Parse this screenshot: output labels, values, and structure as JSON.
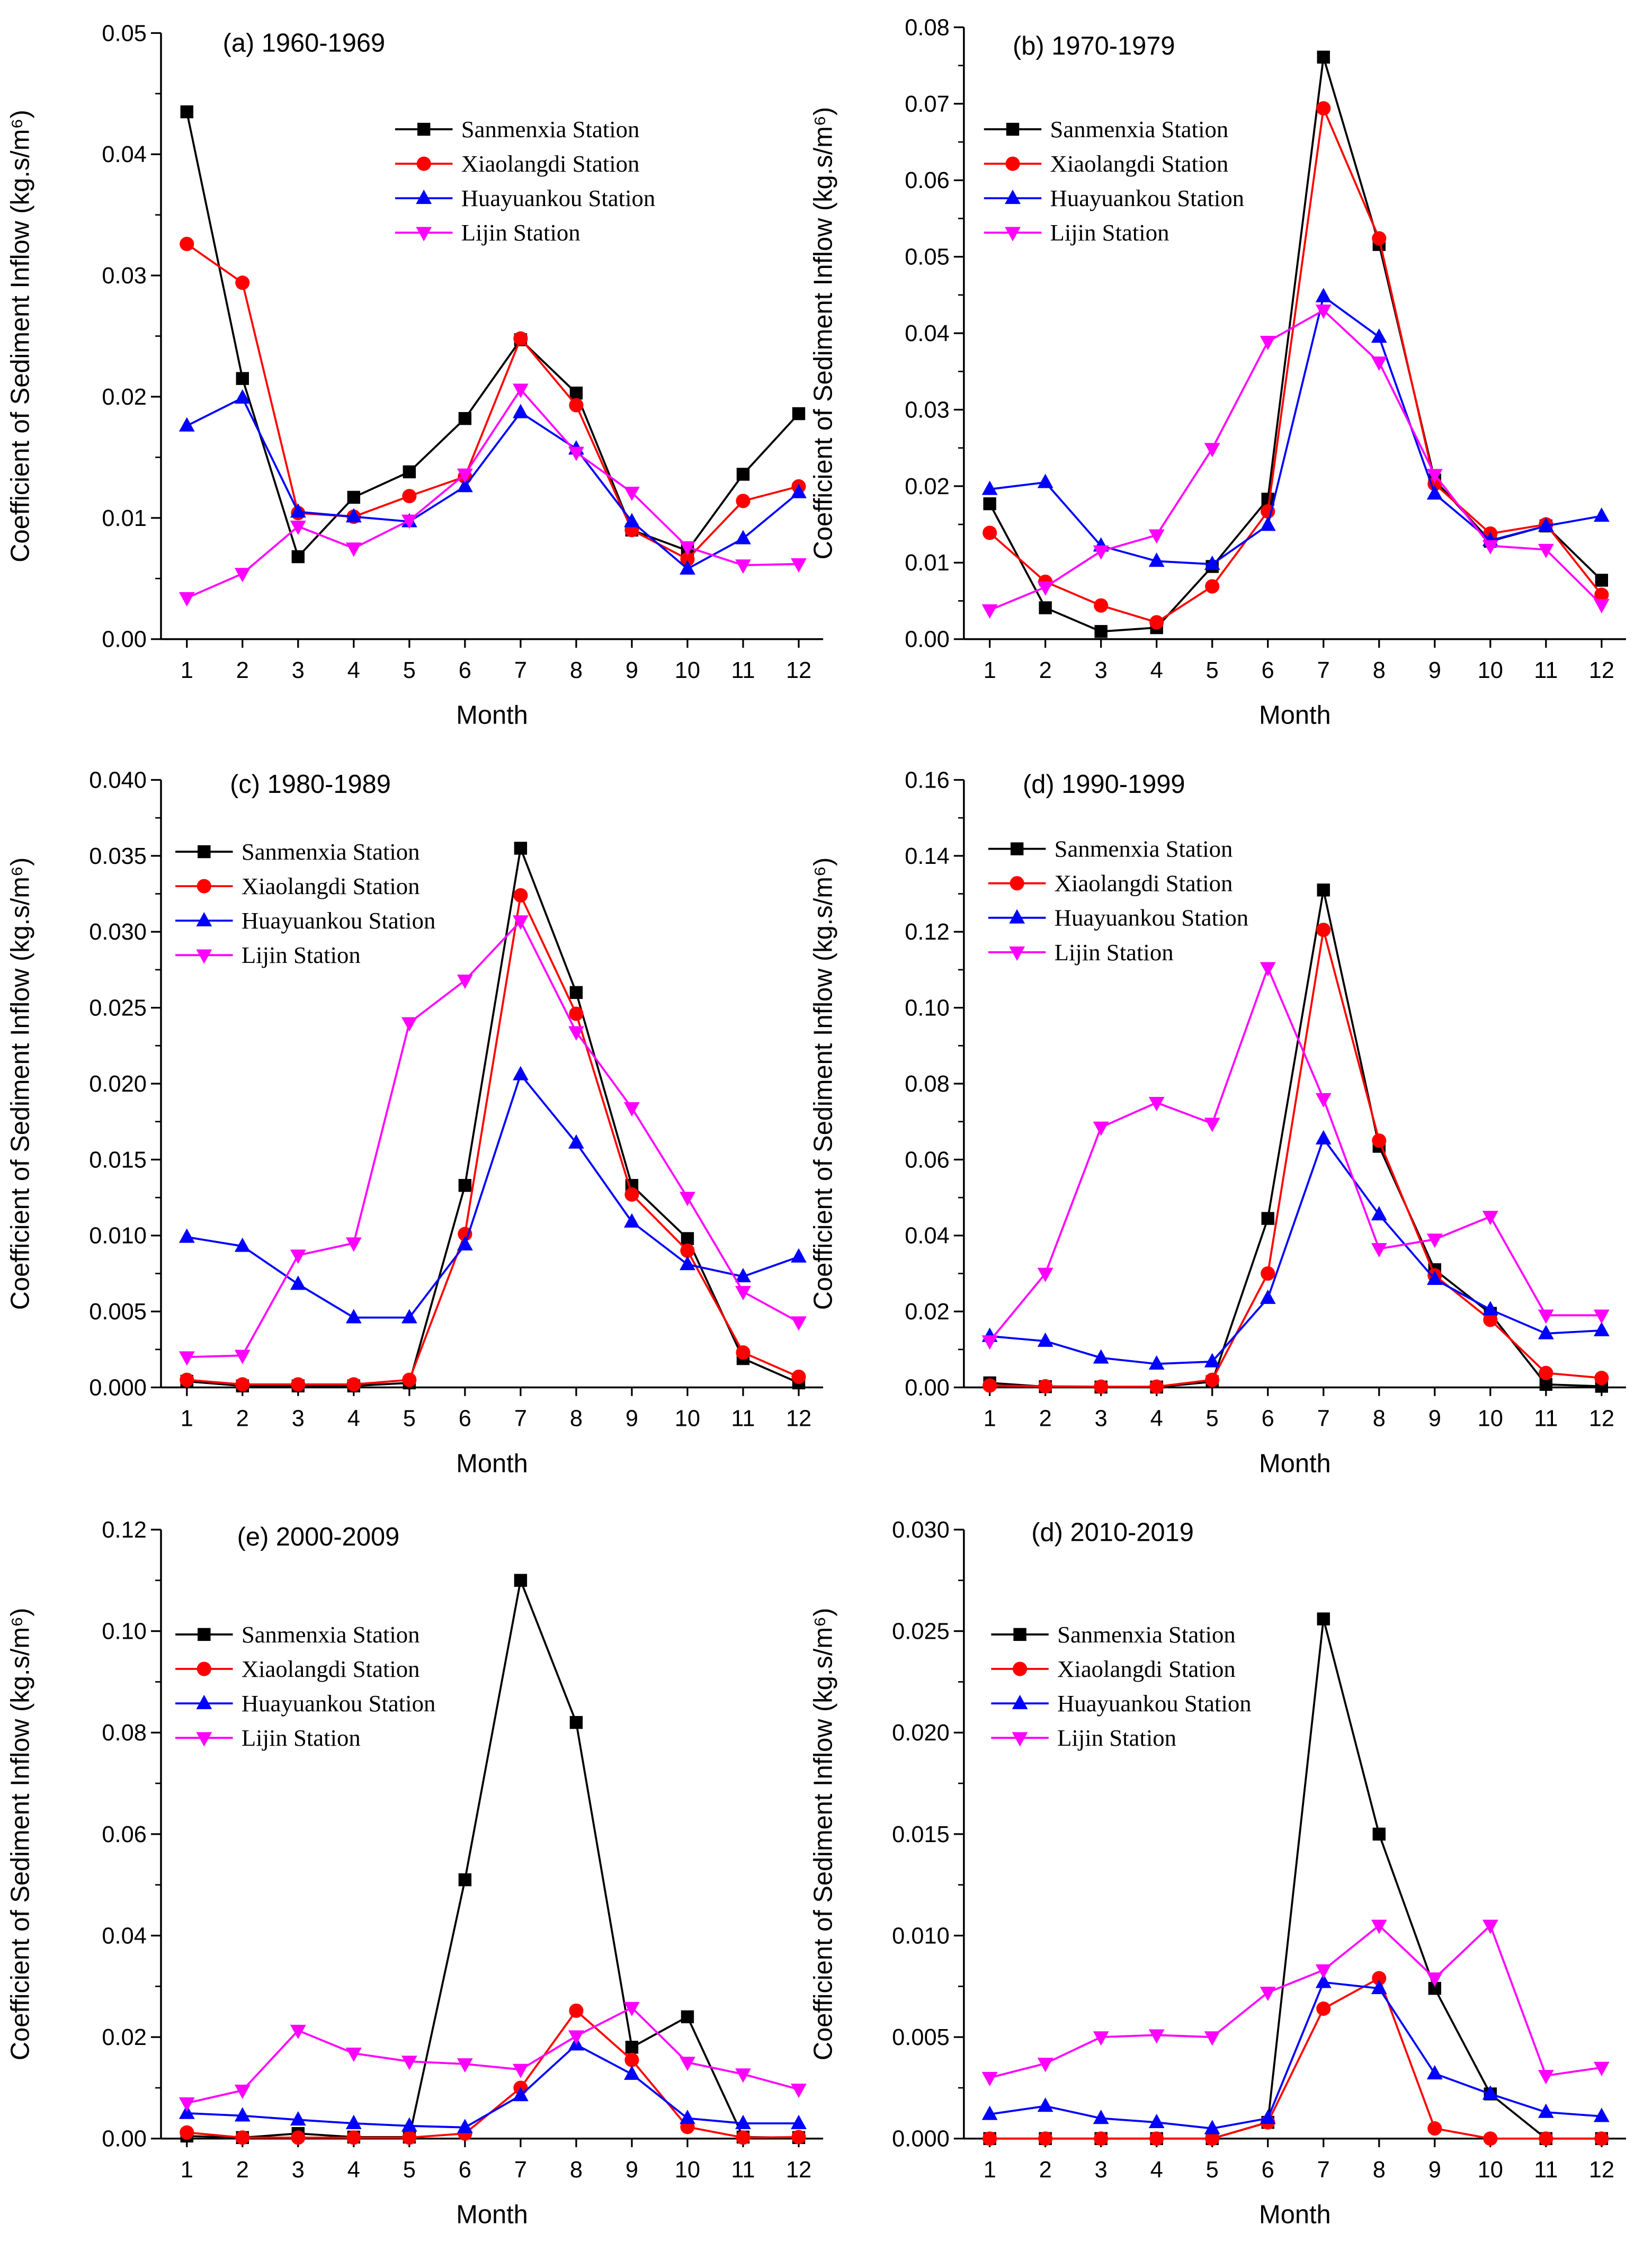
{
  "chart_data": [
    {
      "type": "line",
      "title": "(a) 1960-1969",
      "xlabel": "Month",
      "ylabel": "Coefficient of Sediment Inflow (kg.s/m⁶)",
      "categories": [
        1,
        2,
        3,
        4,
        5,
        6,
        7,
        8,
        9,
        10,
        11,
        12
      ],
      "ylim": [
        0,
        0.05
      ],
      "ytick_step": 0.01,
      "ytick_decimals": 2,
      "legend": "top-right",
      "grid": false,
      "series": [
        {
          "name": "Sanmenxia Station",
          "values": [
            0.0435,
            0.0215,
            0.0068,
            0.0117,
            0.0138,
            0.0182,
            0.0247,
            0.0203,
            0.009,
            0.0073,
            0.0136,
            0.0186
          ]
        },
        {
          "name": "Xiaolangdi Station",
          "values": [
            0.0326,
            0.0294,
            0.0104,
            0.0101,
            0.0118,
            0.0134,
            0.0248,
            0.0193,
            0.009,
            0.0066,
            0.0114,
            0.0126
          ]
        },
        {
          "name": "Huayuankou Station",
          "values": [
            0.0176,
            0.0199,
            0.0105,
            0.0101,
            0.0097,
            0.0126,
            0.0187,
            0.0157,
            0.0097,
            0.0058,
            0.0083,
            0.0121
          ]
        },
        {
          "name": "Lijin Station",
          "values": [
            0.0034,
            0.0054,
            0.0093,
            0.0075,
            0.0098,
            0.0136,
            0.0206,
            0.0154,
            0.0121,
            0.0076,
            0.0061,
            0.0062
          ]
        }
      ]
    },
    {
      "type": "line",
      "title": "(b) 1970-1979",
      "xlabel": "Month",
      "ylabel": "Coefficient of Sediment Inflow (kg.s/m⁶)",
      "categories": [
        1,
        2,
        3,
        4,
        5,
        6,
        7,
        8,
        9,
        10,
        11,
        12
      ],
      "ylim": [
        0,
        0.08
      ],
      "ytick_step": 0.01,
      "ytick_decimals": 2,
      "legend": "top-left",
      "grid": false,
      "series": [
        {
          "name": "Sanmenxia Station",
          "values": [
            0.0177,
            0.0041,
            0.001,
            0.0015,
            0.0095,
            0.0183,
            0.0761,
            0.0516,
            0.0208,
            0.0128,
            0.0148,
            0.0077
          ]
        },
        {
          "name": "Xiaolangdi Station",
          "values": [
            0.0139,
            0.0075,
            0.0044,
            0.0022,
            0.0069,
            0.0167,
            0.0694,
            0.0524,
            0.0203,
            0.0138,
            0.015,
            0.0058
          ]
        },
        {
          "name": "Huayuankou Station",
          "values": [
            0.0196,
            0.0205,
            0.0122,
            0.0102,
            0.0098,
            0.0149,
            0.0448,
            0.0395,
            0.019,
            0.0129,
            0.0148,
            0.0161
          ]
        },
        {
          "name": "Lijin Station",
          "values": [
            0.0038,
            0.0068,
            0.0115,
            0.0136,
            0.0249,
            0.0389,
            0.043,
            0.0362,
            0.0215,
            0.0122,
            0.0117,
            0.0045
          ]
        }
      ]
    },
    {
      "type": "line",
      "title": "(c) 1980-1989",
      "xlabel": "Month",
      "ylabel": "Coefficient of Sediment Inflow (kg.s/m⁶)",
      "categories": [
        1,
        2,
        3,
        4,
        5,
        6,
        7,
        8,
        9,
        10,
        11,
        12
      ],
      "ylim": [
        0,
        0.04
      ],
      "ytick_step": 0.005,
      "ytick_decimals": 3,
      "legend": "top-left",
      "grid": false,
      "series": [
        {
          "name": "Sanmenxia Station",
          "values": [
            0.0004,
            0.0001,
            0.0001,
            0.0001,
            0.0003,
            0.0133,
            0.0355,
            0.026,
            0.0133,
            0.0098,
            0.0019,
            0.0003
          ]
        },
        {
          "name": "Xiaolangdi Station",
          "values": [
            0.0005,
            0.0002,
            0.0002,
            0.0002,
            0.0005,
            0.0101,
            0.0324,
            0.0246,
            0.0127,
            0.009,
            0.0023,
            0.0007
          ]
        },
        {
          "name": "Huayuankou Station",
          "values": [
            0.0099,
            0.0093,
            0.0068,
            0.0046,
            0.0046,
            0.0094,
            0.0206,
            0.0161,
            0.0109,
            0.0081,
            0.0073,
            0.0086
          ]
        },
        {
          "name": "Lijin Station",
          "values": [
            0.002,
            0.0021,
            0.0087,
            0.0095,
            0.024,
            0.0268,
            0.0307,
            0.0234,
            0.0184,
            0.0125,
            0.0063,
            0.0043
          ]
        }
      ]
    },
    {
      "type": "line",
      "title": "(d) 1990-1999",
      "xlabel": "Month",
      "ylabel": "Coefficient of Sediment Inflow (kg.s/m⁶)",
      "categories": [
        1,
        2,
        3,
        4,
        5,
        6,
        7,
        8,
        9,
        10,
        11,
        12
      ],
      "ylim": [
        0,
        0.16
      ],
      "ytick_step": 0.02,
      "ytick_decimals": 2,
      "legend": "top-left",
      "grid": false,
      "series": [
        {
          "name": "Sanmenxia Station",
          "values": [
            0.0012,
            0.0002,
            0.0001,
            0.0001,
            0.0015,
            0.0445,
            0.131,
            0.0635,
            0.031,
            0.0195,
            0.0008,
            0.0003
          ]
        },
        {
          "name": "Xiaolangdi Station",
          "values": [
            0.0005,
            0.0003,
            0.0002,
            0.0002,
            0.002,
            0.03,
            0.1205,
            0.065,
            0.0295,
            0.0178,
            0.0038,
            0.0025
          ]
        },
        {
          "name": "Huayuankou Station",
          "values": [
            0.0135,
            0.0122,
            0.0078,
            0.0062,
            0.0068,
            0.0235,
            0.0655,
            0.0455,
            0.0285,
            0.0205,
            0.0142,
            0.015
          ]
        },
        {
          "name": "Lijin Station",
          "values": [
            0.0122,
            0.03,
            0.0685,
            0.075,
            0.0695,
            0.1105,
            0.076,
            0.0365,
            0.039,
            0.045,
            0.019,
            0.019
          ]
        }
      ]
    },
    {
      "type": "line",
      "title": "(e) 2000-2009",
      "xlabel": "Month",
      "ylabel": "Coefficient of Sediment Inflow (kg.s/m⁶)",
      "categories": [
        1,
        2,
        3,
        4,
        5,
        6,
        7,
        8,
        9,
        10,
        11,
        12
      ],
      "ylim": [
        0,
        0.12
      ],
      "ytick_step": 0.02,
      "ytick_decimals": 2,
      "legend": "top-left",
      "grid": false,
      "series": [
        {
          "name": "Sanmenxia Station",
          "values": [
            0.0005,
            0.0002,
            0.001,
            0.0003,
            0.0003,
            0.051,
            0.11,
            0.082,
            0.018,
            0.024,
            0.0003,
            0.0002
          ]
        },
        {
          "name": "Xiaolangdi Station",
          "values": [
            0.0012,
            0.0002,
            0.0002,
            0.0002,
            0.0002,
            0.001,
            0.01,
            0.0252,
            0.0155,
            0.0023,
            0.0002,
            0.0003
          ]
        },
        {
          "name": "Huayuankou Station",
          "values": [
            0.005,
            0.0045,
            0.0037,
            0.003,
            0.0025,
            0.0022,
            0.0085,
            0.0185,
            0.0127,
            0.004,
            0.003,
            0.003
          ]
        },
        {
          "name": "Lijin Station",
          "values": [
            0.007,
            0.0095,
            0.0213,
            0.0168,
            0.0152,
            0.0147,
            0.0136,
            0.0202,
            0.0258,
            0.015,
            0.0127,
            0.0097
          ]
        }
      ]
    },
    {
      "type": "line",
      "title": "(d) 2010-2019",
      "xlabel": "Month",
      "ylabel": "Coefficient of Sediment Inflow (kg.s/m⁶)",
      "categories": [
        1,
        2,
        3,
        4,
        5,
        6,
        7,
        8,
        9,
        10,
        11,
        12
      ],
      "ylim": [
        0,
        0.03
      ],
      "ytick_step": 0.005,
      "ytick_decimals": 3,
      "legend": "top-left",
      "grid": false,
      "series": [
        {
          "name": "Sanmenxia Station",
          "values": [
            0,
            0,
            0,
            0,
            0,
            0.0008,
            0.0256,
            0.015,
            0.0074,
            0.0022,
            0,
            0
          ]
        },
        {
          "name": "Xiaolangdi Station",
          "values": [
            0,
            0,
            0,
            0,
            0,
            0.0008,
            0.0064,
            0.0079,
            0.0005,
            0,
            0,
            0
          ]
        },
        {
          "name": "Huayuankou Station",
          "values": [
            0.0012,
            0.0016,
            0.001,
            0.0008,
            0.0005,
            0.001,
            0.0077,
            0.0074,
            0.0032,
            0.0022,
            0.0013,
            0.0011
          ]
        },
        {
          "name": "Lijin Station",
          "values": [
            0.003,
            0.0037,
            0.005,
            0.0051,
            0.005,
            0.0072,
            0.0083,
            0.0105,
            0.0079,
            0.0105,
            0.0031,
            0.0035
          ]
        }
      ]
    }
  ],
  "series_style": [
    {
      "color": "#000000",
      "marker": "square"
    },
    {
      "color": "#ff0000",
      "marker": "circle"
    },
    {
      "color": "#0000ff",
      "marker": "triangle-up"
    },
    {
      "color": "#ff00ff",
      "marker": "triangle-down"
    }
  ]
}
